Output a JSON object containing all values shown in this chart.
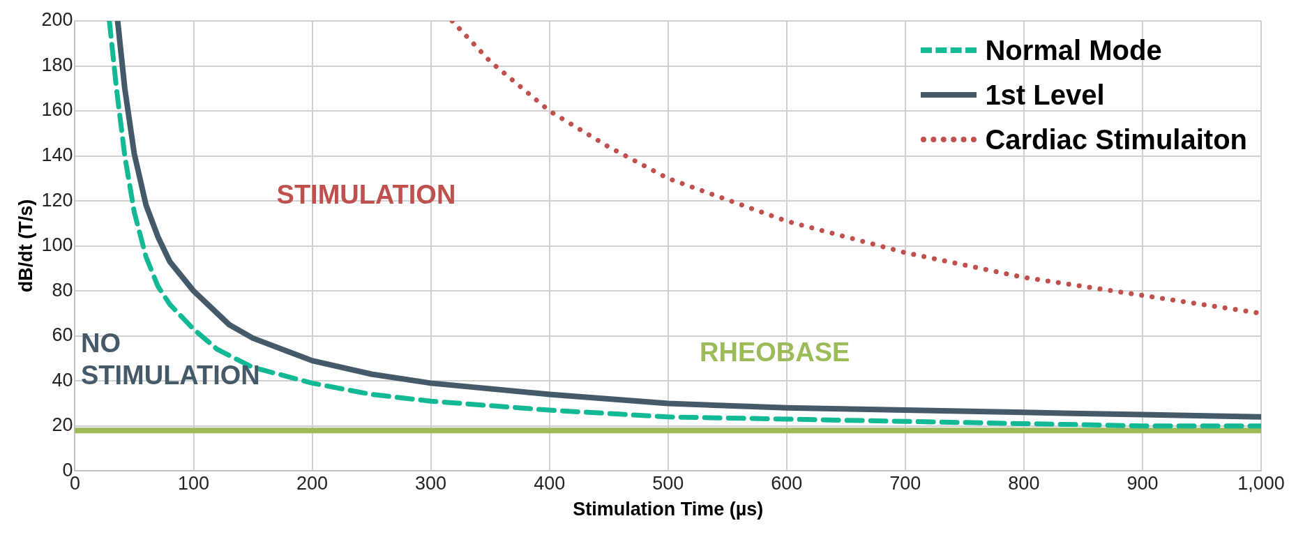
{
  "chart_data": {
    "type": "line",
    "xlabel": "Stimulation Time (µs)",
    "ylabel": "dB/dt (T/s)",
    "xlim": [
      0,
      1000
    ],
    "xticks": [
      0,
      100,
      200,
      300,
      400,
      500,
      600,
      700,
      800,
      900,
      {
        "value": 1000,
        "label": "1,000"
      }
    ],
    "ylim": [
      0,
      200
    ],
    "yticks": [
      0,
      20,
      40,
      60,
      80,
      100,
      120,
      140,
      160,
      180,
      200
    ],
    "grid": true,
    "legend": "top right",
    "marker": "none",
    "series": [
      {
        "name": "Normal Mode",
        "color": "#13b995",
        "line_style": "dashed",
        "x": [
          29,
          35,
          42,
          50,
          60,
          70,
          80,
          100,
          120,
          150,
          200,
          250,
          300,
          400,
          500,
          600,
          700,
          800,
          900,
          1000
        ],
        "values": [
          200,
          170,
          140,
          115,
          95,
          82,
          74,
          63,
          54,
          46,
          39,
          34,
          31,
          27,
          24,
          23,
          22,
          21,
          20,
          20
        ]
      },
      {
        "name": "1st Level",
        "color": "#455a69",
        "line_style": "solid",
        "x": [
          36,
          42,
          50,
          60,
          70,
          80,
          100,
          130,
          150,
          200,
          250,
          300,
          400,
          500,
          600,
          700,
          800,
          900,
          1000
        ],
        "values": [
          200,
          170,
          141,
          118,
          104,
          93,
          80,
          65,
          59,
          49,
          43,
          39,
          34,
          30,
          28,
          27,
          26,
          25,
          24
        ]
      },
      {
        "name": "Cardiac Stimulaiton",
        "color": "#c0504d",
        "line_style": "dotted",
        "x": [
          318,
          350,
          400,
          450,
          500,
          600,
          700,
          800,
          900,
          1000
        ],
        "values": [
          200,
          182,
          160,
          144,
          130,
          111,
          97,
          86,
          78,
          70
        ]
      }
    ],
    "ref_lines": [
      {
        "axis": "y",
        "value": 18,
        "label": "RHEOBASE",
        "color": "#9bbb59"
      }
    ],
    "annotations": [
      "STIMULATION",
      "NO STIMULATION"
    ]
  }
}
